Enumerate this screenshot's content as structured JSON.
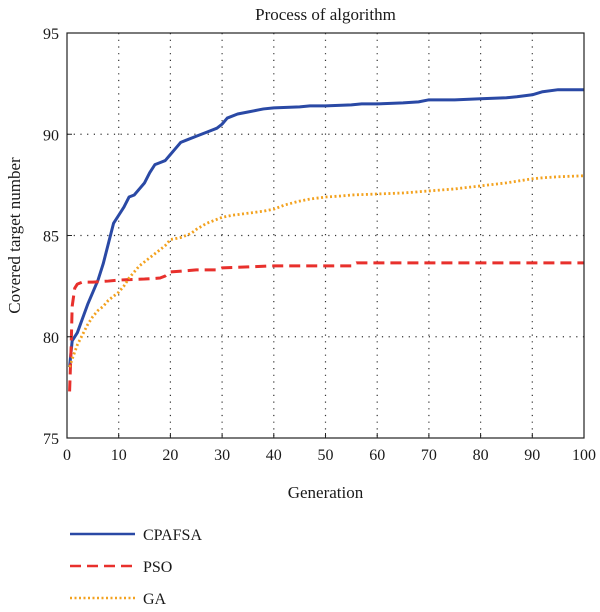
{
  "chart_data": {
    "type": "line",
    "title": "Process of algorithm",
    "xlabel": "Generation",
    "ylabel": "Covered target number",
    "xlim": [
      0,
      100
    ],
    "ylim": [
      75,
      95
    ],
    "xticks": [
      0,
      10,
      20,
      30,
      40,
      50,
      60,
      70,
      80,
      90,
      100
    ],
    "yticks": [
      75,
      80,
      85,
      90,
      95
    ],
    "grid": true,
    "legend_position": "below",
    "series": [
      {
        "name": "CPAFSA",
        "color": "#2a49a5",
        "style": "solid",
        "x": [
          0.5,
          1,
          2,
          3,
          4,
          5,
          6,
          7,
          8,
          9,
          10,
          11,
          12,
          13,
          14,
          15,
          16,
          17,
          18,
          19,
          20,
          21,
          22,
          23,
          25,
          27,
          29,
          30,
          31,
          33,
          35,
          37,
          38,
          40,
          45,
          47,
          50,
          55,
          57,
          60,
          65,
          68,
          70,
          75,
          80,
          85,
          87,
          90,
          92,
          95,
          100
        ],
        "y": [
          78.5,
          79.8,
          80.2,
          80.9,
          81.6,
          82.2,
          82.8,
          83.6,
          84.6,
          85.6,
          86.0,
          86.4,
          86.9,
          87.0,
          87.3,
          87.6,
          88.1,
          88.5,
          88.6,
          88.7,
          89.0,
          89.3,
          89.6,
          89.7,
          89.9,
          90.1,
          90.3,
          90.5,
          90.8,
          91.0,
          91.1,
          91.2,
          91.25,
          91.3,
          91.35,
          91.4,
          91.4,
          91.45,
          91.5,
          91.5,
          91.55,
          91.6,
          91.7,
          91.7,
          91.75,
          91.8,
          91.85,
          91.95,
          92.1,
          92.2,
          92.2
        ]
      },
      {
        "name": "PSO",
        "color": "#e8302c",
        "style": "dashed",
        "x": [
          0.5,
          0.8,
          1,
          1.5,
          2,
          3,
          5,
          8,
          10,
          15,
          18,
          19,
          20,
          25,
          28,
          29,
          30,
          35,
          40,
          50,
          55,
          56,
          60,
          70,
          80,
          90,
          100
        ],
        "y": [
          77.3,
          79.5,
          81.5,
          82.4,
          82.6,
          82.7,
          82.7,
          82.75,
          82.8,
          82.85,
          82.9,
          83.0,
          83.2,
          83.3,
          83.3,
          83.3,
          83.4,
          83.45,
          83.5,
          83.5,
          83.5,
          83.65,
          83.65,
          83.65,
          83.65,
          83.65,
          83.65
        ]
      },
      {
        "name": "GA",
        "color": "#f3a21f",
        "style": "dotted",
        "x": [
          0.5,
          1,
          2,
          3,
          4,
          5,
          6,
          7,
          8,
          9,
          10,
          11,
          12,
          13,
          14,
          15,
          16,
          17,
          18,
          19,
          20,
          22,
          24,
          25,
          27,
          29,
          30,
          32,
          35,
          38,
          40,
          42,
          45,
          47,
          50,
          53,
          55,
          60,
          65,
          70,
          75,
          80,
          85,
          90,
          92,
          95,
          100
        ],
        "y": [
          78.5,
          78.9,
          79.6,
          80.1,
          80.6,
          81.0,
          81.3,
          81.5,
          81.8,
          82.0,
          82.2,
          82.5,
          82.9,
          83.2,
          83.5,
          83.7,
          83.9,
          84.1,
          84.3,
          84.5,
          84.8,
          84.9,
          85.1,
          85.3,
          85.6,
          85.8,
          85.9,
          86.0,
          86.1,
          86.2,
          86.3,
          86.5,
          86.7,
          86.8,
          86.9,
          86.95,
          87.0,
          87.05,
          87.1,
          87.2,
          87.3,
          87.45,
          87.6,
          87.8,
          87.85,
          87.9,
          87.95
        ]
      }
    ]
  }
}
